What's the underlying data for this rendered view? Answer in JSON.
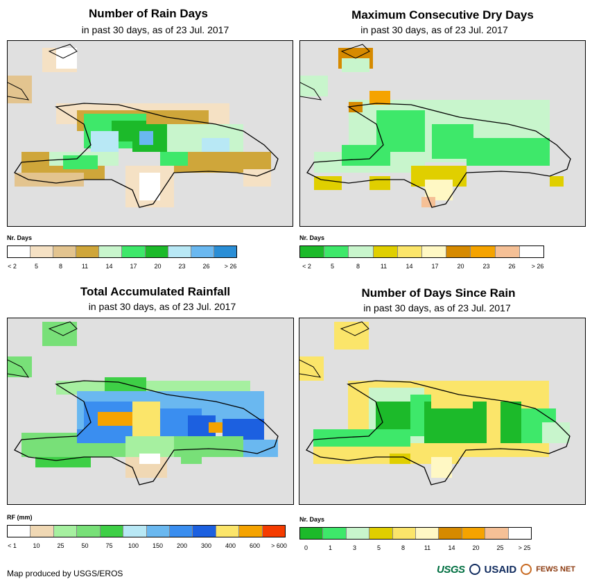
{
  "panels": [
    {
      "title": "Number of Rain Days",
      "subtitle": "in past 30 days, as of 23 Jul. 2017",
      "legend_title": "Nr. Days",
      "legend_labels": [
        "< 2",
        "5",
        "8",
        "11",
        "14",
        "17",
        "20",
        "23",
        "26",
        "> 26"
      ],
      "legend_colors": [
        "#ffffff",
        "#f5e1c4",
        "#e3c48f",
        "#cfa63a",
        "#c8f5cc",
        "#3ee86a",
        "#1cba2a",
        "#b8e8f5",
        "#6ab8f0",
        "#2a8ed6"
      ],
      "fill": "#cfa63a",
      "icon": "rain-days-map"
    },
    {
      "title": "Maximum Consecutive Dry Days",
      "subtitle": "in past 30 days, as of 23 Jul. 2017",
      "legend_title": "Nr. Days",
      "legend_labels": [
        "< 2",
        "5",
        "8",
        "11",
        "14",
        "17",
        "20",
        "23",
        "26",
        "> 26"
      ],
      "legend_colors": [
        "#1cba2a",
        "#3ee86a",
        "#c8f5cc",
        "#e0cf00",
        "#fbe56a",
        "#fff8c4",
        "#d68a00",
        "#f5a300",
        "#f5c096",
        "#ffffff"
      ],
      "fill": "#c8f5cc",
      "icon": "dry-days-map"
    },
    {
      "title": "Total Accumulated Rainfall",
      "subtitle": "in past 30 days, as of 23 Jul. 2017",
      "legend_title": "RF (mm)",
      "legend_labels": [
        "< 1",
        "10",
        "25",
        "50",
        "75",
        "100",
        "150",
        "200",
        "300",
        "400",
        "600",
        "> 600"
      ],
      "legend_colors": [
        "#ffffff",
        "#f0d8b4",
        "#a6f0a0",
        "#78e078",
        "#3ecf46",
        "#b8e8f5",
        "#6ab8f0",
        "#3a8ef0",
        "#1c60e0",
        "#fbe56a",
        "#f5a300",
        "#f53c00"
      ],
      "fill": "#6ab8f0",
      "icon": "rainfall-map"
    },
    {
      "title": "Number of Days Since Rain",
      "subtitle": "in past 30 days, as of 23 Jul. 2017",
      "legend_title": "Nr. Days",
      "legend_labels": [
        "0",
        "1",
        "3",
        "5",
        "8",
        "11",
        "14",
        "20",
        "25",
        "> 25"
      ],
      "legend_colors": [
        "#1cba2a",
        "#3ee86a",
        "#c8f5cc",
        "#e0cf00",
        "#fbe56a",
        "#fff8c4",
        "#d68a00",
        "#f5a300",
        "#f5c096",
        "#ffffff"
      ],
      "fill": "#fbe56a",
      "icon": "days-since-rain-map"
    }
  ],
  "credit": "Map produced by USGS/EROS",
  "logos": {
    "usgs": "USGS",
    "usaid": "USAID",
    "fews": "FEWS NET"
  }
}
